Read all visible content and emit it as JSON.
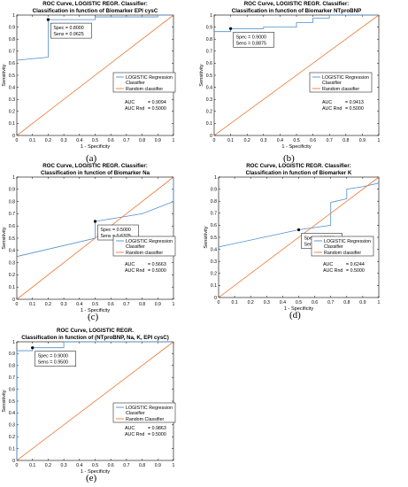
{
  "colors": {
    "logistic": "#4f8fd0",
    "random": "#ec7a3a",
    "axis": "#000000",
    "marker": "#000000"
  },
  "chart_data": [
    {
      "type": "line",
      "panel_label": "(a)",
      "title": "ROC Curve, LOGISTIC REGR. Classifier:",
      "subtitle": "Classification in function of Biomarker EPI cysC",
      "xlabel": "1 - Specificity",
      "ylabel": "Sensitivity",
      "xlim": [
        0,
        1
      ],
      "ylim": [
        0,
        1
      ],
      "x_ticks": [
        "0",
        "0.1",
        "0.2",
        "0.3",
        "0.4",
        "0.5",
        "0.6",
        "0.7",
        "0.8",
        "0.9",
        "1"
      ],
      "y_ticks": [
        "0",
        "0.1",
        "0.2",
        "0.3",
        "0.4",
        "0.5",
        "0.6",
        "0.7",
        "0.8",
        "0.9",
        "1"
      ],
      "series": [
        {
          "name": "LOGISTIC Regression Classifier",
          "x": [
            0,
            0.2,
            0.2,
            0.5,
            0.5,
            0.9,
            0.9,
            1
          ],
          "y": [
            0.625,
            0.65,
            0.9625,
            0.9625,
            0.985,
            0.985,
            1,
            1
          ]
        },
        {
          "name": "Random classifier",
          "x": [
            0,
            1
          ],
          "y": [
            0,
            1
          ]
        }
      ],
      "marker": {
        "x": 0.2,
        "y": 0.9625,
        "lines": [
          "Spec = 0.8000",
          "Sens = 0.9625"
        ]
      },
      "auc_lines": [
        {
          "label": "AUC",
          "value": "= 0.9094"
        },
        {
          "label": "AUC Rnd",
          "value": "= 0.5000"
        }
      ]
    },
    {
      "type": "line",
      "panel_label": "(b)",
      "title": "ROC Curve, LOGISTIC REGR. Classifier:",
      "subtitle": "Classification in function of Biomarker NTproBNP",
      "xlabel": "1 - Specificity",
      "ylabel": "Sensitivity",
      "xlim": [
        0,
        1
      ],
      "ylim": [
        0,
        1
      ],
      "x_ticks": [
        "0",
        "0.1",
        "0.2",
        "0.3",
        "0.4",
        "0.5",
        "0.6",
        "0.7",
        "0.8",
        "0.9",
        "1"
      ],
      "y_ticks": [
        "0",
        "0.1",
        "0.2",
        "0.3",
        "0.4",
        "0.5",
        "0.6",
        "0.7",
        "0.8",
        "0.9",
        "1"
      ],
      "series": [
        {
          "name": "LOGISTIC Regression Classifier",
          "x": [
            0,
            0.1,
            0.1,
            0.3,
            0.3,
            0.5,
            0.5,
            0.6,
            0.6,
            0.7,
            0.7,
            1
          ],
          "y": [
            0.8625,
            0.8625,
            0.8875,
            0.8875,
            0.9,
            0.9,
            0.9375,
            0.9375,
            0.975,
            0.975,
            1,
            1
          ]
        },
        {
          "name": "Random classifier",
          "x": [
            0,
            1
          ],
          "y": [
            0,
            1
          ]
        }
      ],
      "marker": {
        "x": 0.1,
        "y": 0.8875,
        "lines": [
          "Spec = 0.9000",
          "Sens = 0.8875"
        ]
      },
      "auc_lines": [
        {
          "label": "AUC",
          "value": "= 0.9413"
        },
        {
          "label": "AUC Rnd",
          "value": "= 0.5000"
        }
      ]
    },
    {
      "type": "line",
      "panel_label": "(c)",
      "title": "ROC Curve, LOGISTIC REGR. Classifier:",
      "subtitle": "Classification in function of Biomarker Na",
      "xlabel": "1 - Specificity",
      "ylabel": "Sensitivity",
      "xlim": [
        0,
        1
      ],
      "ylim": [
        0,
        1
      ],
      "x_ticks": [
        "0",
        "0.1",
        "0.2",
        "0.3",
        "0.4",
        "0.5",
        "0.6",
        "0.7",
        "0.8",
        "0.9",
        "1"
      ],
      "y_ticks": [
        "0",
        "0.1",
        "0.2",
        "0.3",
        "0.4",
        "0.5",
        "0.6",
        "0.7",
        "0.8",
        "0.9",
        "1"
      ],
      "series": [
        {
          "name": "LOGISTIC Regression Classifier",
          "x": [
            0,
            0.5,
            0.5,
            0.8,
            1,
            1
          ],
          "y": [
            0.35,
            0.5,
            0.6375,
            0.7,
            0.8,
            1
          ]
        },
        {
          "name": "Random classifier",
          "x": [
            0,
            1
          ],
          "y": [
            0,
            1
          ]
        }
      ],
      "marker": {
        "x": 0.5,
        "y": 0.6375,
        "lines": [
          "Spec = 0.5000",
          "Sens = 0.6375"
        ]
      },
      "auc_lines": [
        {
          "label": "AUC",
          "value": "= 0.5663"
        },
        {
          "label": "AUC Rnd",
          "value": "= 0.5000"
        }
      ]
    },
    {
      "type": "line",
      "panel_label": "(d)",
      "title": "ROC Curve, LOGISTIC REGR. Classifier:",
      "subtitle": "Classification in function of Biomarker K",
      "xlabel": "1 - Specificity",
      "ylabel": "Sensitivity",
      "xlim": [
        0,
        1
      ],
      "ylim": [
        0,
        1
      ],
      "x_ticks": [
        "0",
        "0.1",
        "0.2",
        "0.3",
        "0.4",
        "0.5",
        "0.6",
        "0.7",
        "0.8",
        "0.9",
        "1"
      ],
      "y_ticks": [
        "0",
        "0.1",
        "0.2",
        "0.3",
        "0.4",
        "0.5",
        "0.6",
        "0.7",
        "0.8",
        "0.9",
        "1"
      ],
      "series": [
        {
          "name": "LOGISTIC Regression Classifier",
          "x": [
            0,
            0.5,
            0.7,
            0.7,
            0.8,
            0.8,
            0.9,
            1
          ],
          "y": [
            0.42,
            0.5625,
            0.6,
            0.79,
            0.82,
            0.9,
            0.92,
            0.95
          ]
        },
        {
          "name": "Random classifier",
          "x": [
            0,
            1
          ],
          "y": [
            0,
            1
          ]
        }
      ],
      "marker": {
        "x": 0.5,
        "y": 0.5625,
        "lines": [
          "Spec = 0.5000",
          "Sens = 0.5625"
        ]
      },
      "auc_lines": [
        {
          "label": "AUC",
          "value": "= 0.6244"
        },
        {
          "label": "AUC Rnd",
          "value": "= 0.5000"
        }
      ]
    },
    {
      "type": "line",
      "panel_label": "(e)",
      "title": "ROC Curve,  LOGISTIC REGR.",
      "subtitle": "Classification in function of (NTproBNP, Na, K, EPI cysC)",
      "xlabel": "1 - Specificity",
      "ylabel": "Sensitivity",
      "xlim": [
        0,
        1
      ],
      "ylim": [
        0,
        1
      ],
      "x_ticks": [
        "0",
        "0.1",
        "0.2",
        "0.3",
        "0.4",
        "0.5",
        "0.6",
        "0.7",
        "0.8",
        "0.9",
        "1"
      ],
      "y_ticks": [
        "0",
        "0.1",
        "0.2",
        "0.3",
        "0.4",
        "0.5",
        "0.6",
        "0.7",
        "0.8",
        "0.9",
        "1"
      ],
      "series": [
        {
          "name": "LOGISTIC Regression Classifier",
          "x": [
            0,
            0,
            0.1,
            0.1,
            0.3,
            0.3,
            1
          ],
          "y": [
            0,
            0.925,
            0.925,
            0.95,
            0.95,
            1,
            1
          ]
        },
        {
          "name": "Random Classifier",
          "x": [
            0,
            1
          ],
          "y": [
            0,
            1
          ]
        }
      ],
      "marker": {
        "x": 0.1,
        "y": 0.95,
        "lines": [
          "Spec = 0.9000",
          "Sens = 0.9500"
        ]
      },
      "auc_lines": [
        {
          "label": "AUC",
          "value": "= 0.9863"
        },
        {
          "label": "AUC Rnd",
          "value": "= 0.5000"
        }
      ]
    }
  ]
}
